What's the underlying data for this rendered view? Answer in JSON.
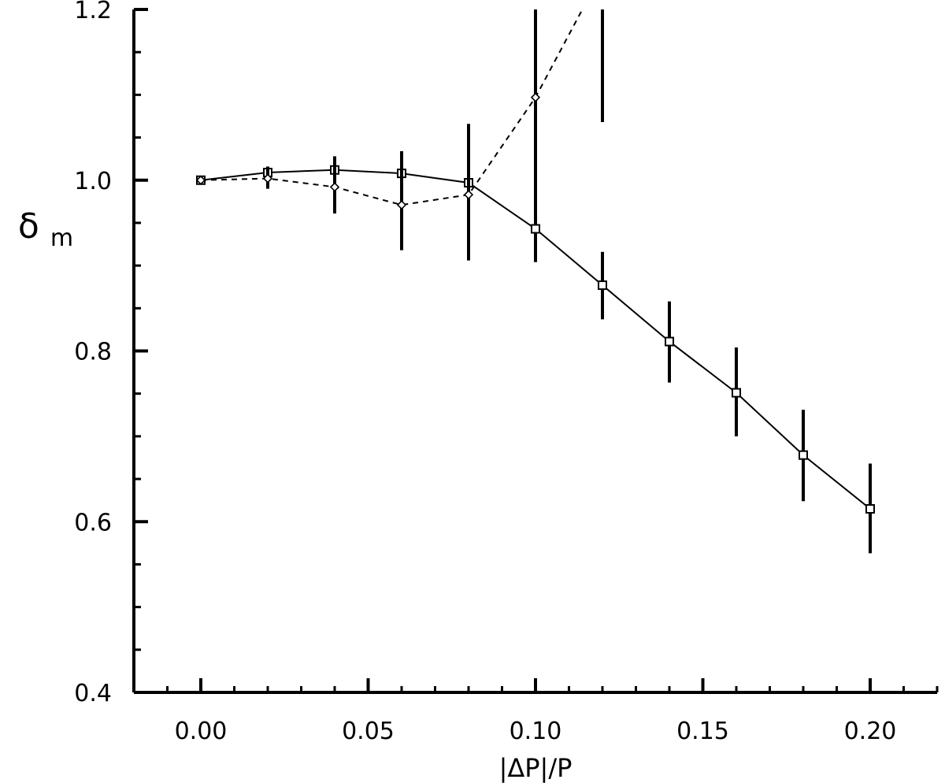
{
  "chart_data": {
    "type": "line",
    "title": "",
    "xlabel": "|ΔP|/P",
    "ylabel": {
      "symbol": "δ",
      "subscript": "m"
    },
    "xlim": [
      -0.02,
      0.22
    ],
    "ylim": [
      0.4,
      1.2
    ],
    "x_ticks": [
      {
        "value": 0.0,
        "label": "0.00"
      },
      {
        "value": 0.05,
        "label": "0.05"
      },
      {
        "value": 0.1,
        "label": "0.10"
      },
      {
        "value": 0.15,
        "label": "0.15"
      },
      {
        "value": 0.2,
        "label": "0.20"
      }
    ],
    "y_ticks": [
      {
        "value": 0.4,
        "label": "0.4"
      },
      {
        "value": 0.6,
        "label": "0.6"
      },
      {
        "value": 0.8,
        "label": "0.8"
      },
      {
        "value": 1.0,
        "label": "1.0"
      },
      {
        "value": 1.2,
        "label": "1.2"
      }
    ],
    "x_minor_step": 0.01,
    "y_minor_step": 0.05,
    "grid": false,
    "legend": "none",
    "series": [
      {
        "line_style": "solid",
        "marker": "square",
        "color": "#000000",
        "x": [
          0.0,
          0.02,
          0.04,
          0.06,
          0.08,
          0.1,
          0.12,
          0.14,
          0.16,
          0.18,
          0.2
        ],
        "y": [
          1.0,
          1.009,
          1.012,
          1.008,
          0.997,
          0.943,
          0.877,
          0.811,
          0.751,
          0.678,
          0.615
        ],
        "error_low": [
          1.0,
          1.001,
          0.995,
          0.98,
          0.96,
          0.904,
          0.837,
          0.763,
          0.7,
          0.624,
          0.563
        ],
        "error_high": [
          1.0,
          1.016,
          1.028,
          1.034,
          1.033,
          0.981,
          0.916,
          0.858,
          0.804,
          0.731,
          0.668
        ]
      },
      {
        "line_style": "dashed",
        "marker": "diamond",
        "color": "#000000",
        "x": [
          0.0,
          0.02,
          0.04,
          0.06,
          0.08,
          0.1,
          0.114
        ],
        "y": [
          1.0,
          1.002,
          0.992,
          0.971,
          0.983,
          1.097,
          1.2
        ],
        "error_low": [
          1.0,
          0.99,
          0.961,
          0.918,
          0.906,
          0.971,
          null
        ],
        "error_high": [
          1.0,
          1.013,
          1.019,
          1.023,
          1.066,
          1.2,
          null
        ]
      },
      {
        "line_style": "none",
        "marker": "errorbar",
        "color": "#000000",
        "x": [
          0.12
        ],
        "y": [
          1.2
        ],
        "error_low": [
          1.068
        ],
        "error_high": [
          1.2
        ]
      }
    ]
  }
}
